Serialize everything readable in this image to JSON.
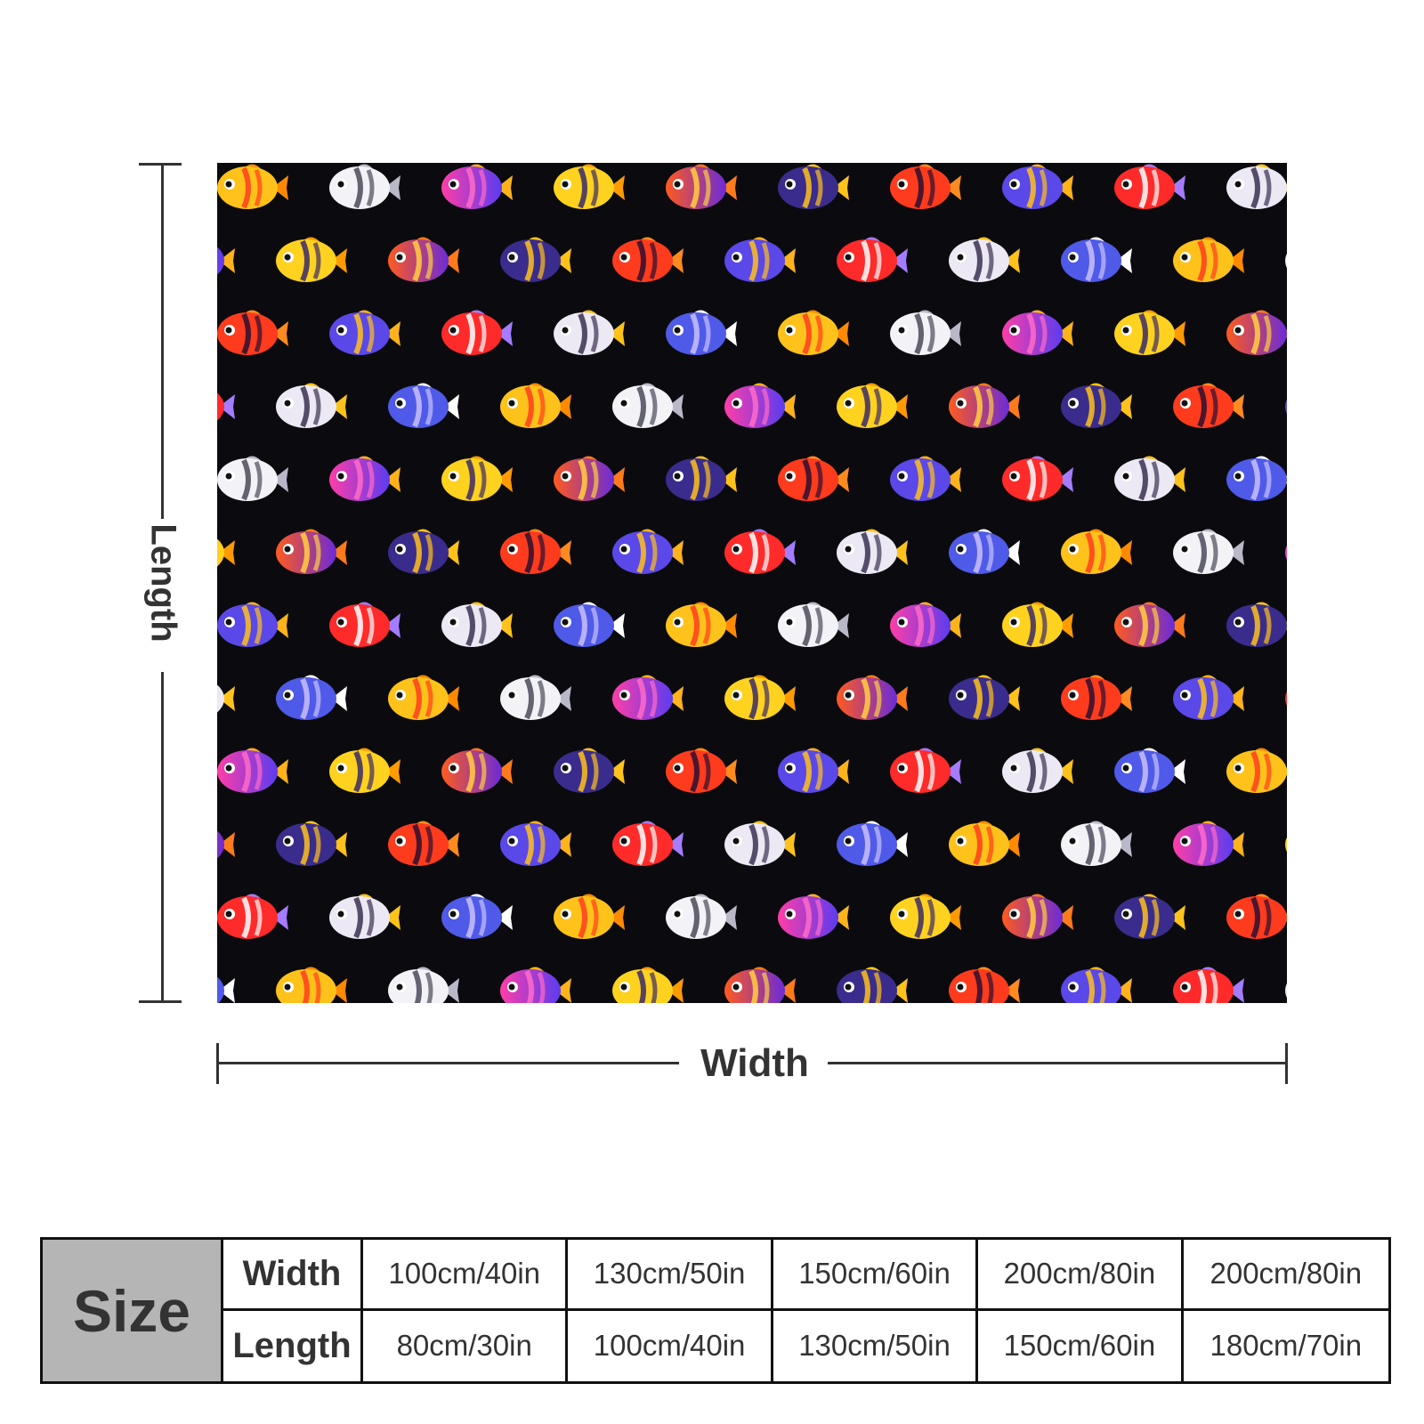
{
  "diagram": {
    "length_label": "Length",
    "width_label": "Width"
  },
  "blanket": {
    "pattern_icon": "tropical-fish-pattern",
    "background_color": "#0b0b0f"
  },
  "size_table": {
    "header": "Size",
    "rows": [
      {
        "label": "Width",
        "values": [
          "100cm/40in",
          "130cm/50in",
          "150cm/60in",
          "200cm/80in",
          "200cm/80in"
        ]
      },
      {
        "label": "Length",
        "values": [
          "80cm/30in",
          "100cm/40in",
          "130cm/50in",
          "150cm/60in",
          "180cm/70in"
        ]
      }
    ]
  }
}
